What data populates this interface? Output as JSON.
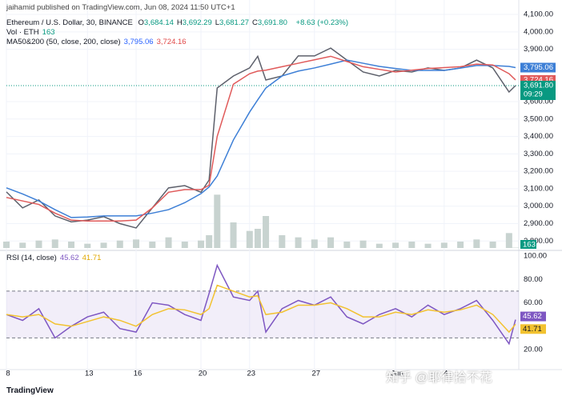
{
  "header": {
    "published": "jaihamid published on TradingView.com, Jun 08, 2024 11:50 UTC+1",
    "symbol": "Ethereum / U.S. Dollar, 30, BINANCE",
    "ohlc": [
      {
        "label": "O",
        "value": "3,684.14"
      },
      {
        "label": "H",
        "value": "3,692.29"
      },
      {
        "label": "L",
        "value": "3,681.27"
      },
      {
        "label": "C",
        "value": "3,691.80"
      }
    ],
    "change": "+8.63 (+0.23%)",
    "volume_legend": "Vol · ETH",
    "volume_value": "163",
    "ma_legend": "MA50&200 (50, close, 200, close)",
    "ma_values": [
      "3,795.06",
      "3,724.16"
    ],
    "rsi_legend": "RSI (14, close)",
    "rsi_values": [
      "45.62",
      "41.71"
    ]
  },
  "footer": {
    "brand": "TradingView",
    "watermark": "知乎 @耶律拾不花"
  },
  "chart_data": [
    {
      "type": "line",
      "grid": true,
      "x": [
        0,
        1,
        2,
        3,
        4,
        5,
        6,
        7,
        8,
        9,
        10,
        11,
        12,
        12.5,
        13,
        14,
        15,
        15.5,
        16,
        17,
        18,
        19,
        20,
        21,
        22,
        23,
        24,
        25,
        26,
        27,
        28,
        29,
        30,
        31,
        31.4
      ],
      "xlim": [
        0,
        31.6
      ],
      "xticks": [
        {
          "value": 0,
          "label": "8"
        },
        {
          "value": 5,
          "label": "13"
        },
        {
          "value": 8,
          "label": "16"
        },
        {
          "value": 12,
          "label": "20"
        },
        {
          "value": 15,
          "label": "23"
        },
        {
          "value": 19,
          "label": "27"
        },
        {
          "value": 24,
          "label": "Jun"
        },
        {
          "value": 27,
          "label": "4"
        }
      ],
      "ylim": [
        2760,
        4137
      ],
      "yticks": [
        {
          "value": 4100,
          "label": "4,100.00"
        },
        {
          "value": 4000,
          "label": "4,000.00"
        },
        {
          "value": 3900,
          "label": "3,900.00"
        },
        {
          "value": 3600,
          "label": "3,600.00"
        },
        {
          "value": 3500,
          "label": "3,500.00"
        },
        {
          "value": 3400,
          "label": "3,400.00"
        },
        {
          "value": 3300,
          "label": "3,300.00"
        },
        {
          "value": 3200,
          "label": "3,200.00"
        },
        {
          "value": 3100,
          "label": "3,100.00"
        },
        {
          "value": 3000,
          "label": "3,000.00"
        },
        {
          "value": 2900,
          "label": "2,900.00"
        },
        {
          "value": 2800,
          "label": "2,800.00"
        }
      ],
      "series": [
        {
          "name": "ETHUSD",
          "color": "#5d606b",
          "values": [
            3082,
            2990,
            3036,
            2944,
            2910,
            2920,
            2940,
            2900,
            2875,
            2990,
            3105,
            3118,
            3080,
            3150,
            3678,
            3747,
            3793,
            3860,
            3724,
            3747,
            3862,
            3862,
            3907,
            3838,
            3770,
            3747,
            3779,
            3770,
            3793,
            3779,
            3793,
            3838,
            3793,
            3655,
            3691.8
          ]
        },
        {
          "name": "MA200",
          "color": "#3d7fd6",
          "values": [
            3105,
            3070,
            3030,
            2980,
            2935,
            2938,
            2944,
            2944,
            2944,
            2960,
            2980,
            3020,
            3072,
            3110,
            3173,
            3380,
            3540,
            3610,
            3678,
            3747,
            3775,
            3793,
            3815,
            3838,
            3820,
            3802,
            3790,
            3779,
            3779,
            3779,
            3792,
            3807,
            3807,
            3802,
            3795.06
          ]
        },
        {
          "name": "MA50",
          "color": "#e05a5a",
          "values": [
            3050,
            3030,
            3010,
            2960,
            2920,
            2915,
            2915,
            2915,
            2920,
            2990,
            3080,
            3095,
            3095,
            3120,
            3400,
            3700,
            3760,
            3775,
            3780,
            3800,
            3820,
            3840,
            3860,
            3830,
            3800,
            3785,
            3770,
            3780,
            3790,
            3795,
            3800,
            3815,
            3810,
            3760,
            3724.16
          ]
        }
      ],
      "price_labels": [
        {
          "value": 3795.06,
          "label": "3,795.06",
          "color": "#3d7fd6"
        },
        {
          "value": 3724.16,
          "label": "3,724.16",
          "color": "#e05a5a"
        },
        {
          "value": 3691.8,
          "label": "3,691.80",
          "color": "#089981",
          "countdown": "09:29"
        }
      ],
      "volume": {
        "color": "#c8d3d0",
        "values": [
          3000,
          2500,
          3500,
          4000,
          3000,
          2000,
          2500,
          3500,
          4000,
          3000,
          5000,
          3000,
          3500,
          6000,
          25000,
          12000,
          8000,
          9000,
          15000,
          6000,
          5000,
          4000,
          5000,
          3000,
          3500,
          2000,
          2500,
          3000,
          2000,
          2500,
          3000,
          4000,
          3000,
          7000,
          163
        ],
        "ylim": [
          0,
          30000
        ],
        "last_label": "163",
        "last_color": "#089981"
      }
    },
    {
      "type": "line",
      "ylim": [
        5,
        100
      ],
      "yticks": [
        {
          "value": 100,
          "label": "100.00"
        },
        {
          "value": 80,
          "label": "80.00"
        },
        {
          "value": 60,
          "label": "60.00"
        },
        {
          "value": 20,
          "label": "20.00"
        }
      ],
      "bands": [
        30,
        70
      ],
      "series": [
        {
          "name": "RSI",
          "color": "#7e57c2",
          "values": [
            50,
            45,
            55,
            30,
            40,
            48,
            52,
            38,
            35,
            60,
            58,
            50,
            45,
            68,
            92,
            65,
            62,
            70,
            35,
            55,
            62,
            58,
            65,
            48,
            42,
            50,
            55,
            48,
            58,
            50,
            55,
            62,
            45,
            25,
            45.62
          ],
          "value_label": "45.62"
        },
        {
          "name": "RSI MA",
          "color": "#f2c230",
          "values": [
            50,
            48,
            50,
            42,
            40,
            44,
            48,
            45,
            40,
            50,
            55,
            54,
            50,
            55,
            75,
            70,
            65,
            66,
            50,
            52,
            58,
            58,
            60,
            55,
            48,
            48,
            52,
            50,
            54,
            52,
            54,
            58,
            50,
            35,
            41.71
          ],
          "value_label": "41.71"
        }
      ]
    }
  ]
}
